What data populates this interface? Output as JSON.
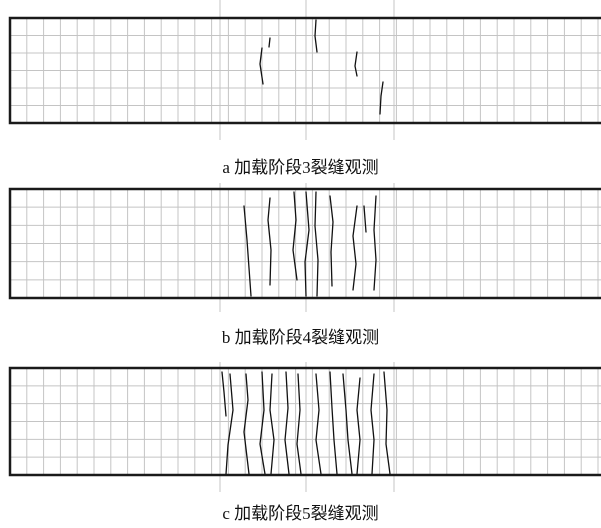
{
  "panels": [
    {
      "caption": "a  加载阶段3裂缝观测"
    },
    {
      "caption": "b  加载阶段4裂缝观测"
    },
    {
      "caption": "c  加载阶段5裂缝观测"
    }
  ],
  "colors": {
    "grid": "#c4c4c4",
    "border": "#1a1a1a",
    "crack": "#111111",
    "background": "#ffffff"
  }
}
